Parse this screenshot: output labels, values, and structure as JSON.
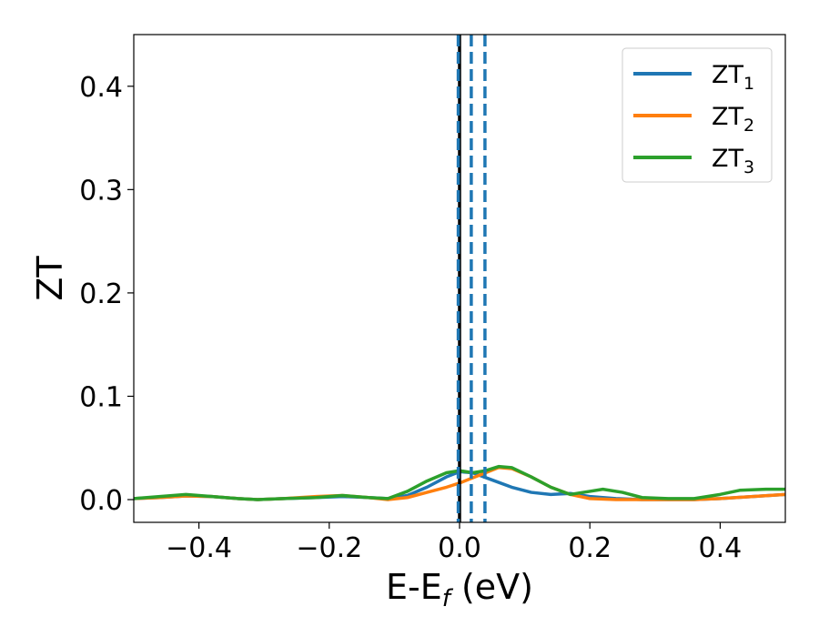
{
  "chart_data": {
    "type": "line",
    "title": "",
    "xlabel": "E-E",
    "xlabel_sub": "f",
    "xlabel_unit": " (eV)",
    "ylabel": "ZT",
    "xlim": [
      -0.5,
      0.5
    ],
    "ylim": [
      -0.022,
      0.45
    ],
    "xticks": [
      -0.4,
      -0.2,
      0.0,
      0.2,
      0.4
    ],
    "xtick_labels": [
      "−0.4",
      "−0.2",
      "0.0",
      "0.2",
      "0.4"
    ],
    "yticks": [
      0.0,
      0.1,
      0.2,
      0.3,
      0.4
    ],
    "ytick_labels": [
      "0.0",
      "0.1",
      "0.2",
      "0.3",
      "0.4"
    ],
    "grid": false,
    "legend_position": "top-right",
    "vlines": [
      {
        "x": 0.0,
        "color": "#000000",
        "style": "solid"
      },
      {
        "x": -0.002,
        "color": "#1f77b4",
        "style": "dashed"
      },
      {
        "x": 0.018,
        "color": "#1f77b4",
        "style": "dashed"
      },
      {
        "x": 0.039,
        "color": "#1f77b4",
        "style": "dashed"
      }
    ],
    "series": [
      {
        "name": "ZT",
        "sub": "1",
        "color": "#1f77b4",
        "points": [
          [
            -0.5,
            0.001
          ],
          [
            -0.46,
            0.002
          ],
          [
            -0.42,
            0.0035
          ],
          [
            -0.38,
            0.003
          ],
          [
            -0.34,
            0.001
          ],
          [
            -0.31,
            0.0
          ],
          [
            -0.27,
            0.001
          ],
          [
            -0.22,
            0.002
          ],
          [
            -0.18,
            0.003
          ],
          [
            -0.14,
            0.002
          ],
          [
            -0.11,
            0.001
          ],
          [
            -0.08,
            0.004
          ],
          [
            -0.05,
            0.012
          ],
          [
            -0.02,
            0.022
          ],
          [
            0.0,
            0.027
          ],
          [
            0.02,
            0.026
          ],
          [
            0.05,
            0.019
          ],
          [
            0.08,
            0.012
          ],
          [
            0.11,
            0.007
          ],
          [
            0.14,
            0.005
          ],
          [
            0.17,
            0.006
          ],
          [
            0.2,
            0.003
          ],
          [
            0.24,
            0.001
          ],
          [
            0.28,
            0.0
          ],
          [
            0.32,
            0.0
          ],
          [
            0.36,
            0.0
          ],
          [
            0.4,
            0.001
          ],
          [
            0.45,
            0.003
          ],
          [
            0.5,
            0.005
          ]
        ]
      },
      {
        "name": "ZT",
        "sub": "2",
        "color": "#ff7f0e",
        "points": [
          [
            -0.5,
            0.001
          ],
          [
            -0.46,
            0.002
          ],
          [
            -0.42,
            0.0035
          ],
          [
            -0.38,
            0.003
          ],
          [
            -0.34,
            0.001
          ],
          [
            -0.31,
            0.0
          ],
          [
            -0.27,
            0.001
          ],
          [
            -0.22,
            0.003
          ],
          [
            -0.18,
            0.004
          ],
          [
            -0.14,
            0.002
          ],
          [
            -0.11,
            0.0
          ],
          [
            -0.08,
            0.002
          ],
          [
            -0.05,
            0.007
          ],
          [
            -0.02,
            0.012
          ],
          [
            0.0,
            0.016
          ],
          [
            0.02,
            0.021
          ],
          [
            0.04,
            0.026
          ],
          [
            0.06,
            0.031
          ],
          [
            0.08,
            0.03
          ],
          [
            0.11,
            0.022
          ],
          [
            0.14,
            0.012
          ],
          [
            0.17,
            0.005
          ],
          [
            0.2,
            0.001
          ],
          [
            0.24,
            0.0
          ],
          [
            0.28,
            0.0
          ],
          [
            0.32,
            0.0
          ],
          [
            0.36,
            0.0
          ],
          [
            0.4,
            0.001
          ],
          [
            0.45,
            0.003
          ],
          [
            0.5,
            0.005
          ]
        ]
      },
      {
        "name": "ZT",
        "sub": "3",
        "color": "#2ca02c",
        "points": [
          [
            -0.5,
            0.001
          ],
          [
            -0.46,
            0.003
          ],
          [
            -0.42,
            0.005
          ],
          [
            -0.38,
            0.003
          ],
          [
            -0.34,
            0.001
          ],
          [
            -0.31,
            0.0
          ],
          [
            -0.27,
            0.001
          ],
          [
            -0.22,
            0.002
          ],
          [
            -0.18,
            0.004
          ],
          [
            -0.14,
            0.002
          ],
          [
            -0.11,
            0.001
          ],
          [
            -0.08,
            0.008
          ],
          [
            -0.05,
            0.018
          ],
          [
            -0.02,
            0.026
          ],
          [
            0.0,
            0.028
          ],
          [
            0.02,
            0.026
          ],
          [
            0.04,
            0.028
          ],
          [
            0.06,
            0.032
          ],
          [
            0.08,
            0.031
          ],
          [
            0.11,
            0.022
          ],
          [
            0.14,
            0.012
          ],
          [
            0.17,
            0.005
          ],
          [
            0.2,
            0.008
          ],
          [
            0.22,
            0.01
          ],
          [
            0.25,
            0.007
          ],
          [
            0.28,
            0.002
          ],
          [
            0.32,
            0.001
          ],
          [
            0.36,
            0.001
          ],
          [
            0.4,
            0.005
          ],
          [
            0.43,
            0.009
          ],
          [
            0.47,
            0.01
          ],
          [
            0.5,
            0.01
          ]
        ]
      }
    ]
  }
}
